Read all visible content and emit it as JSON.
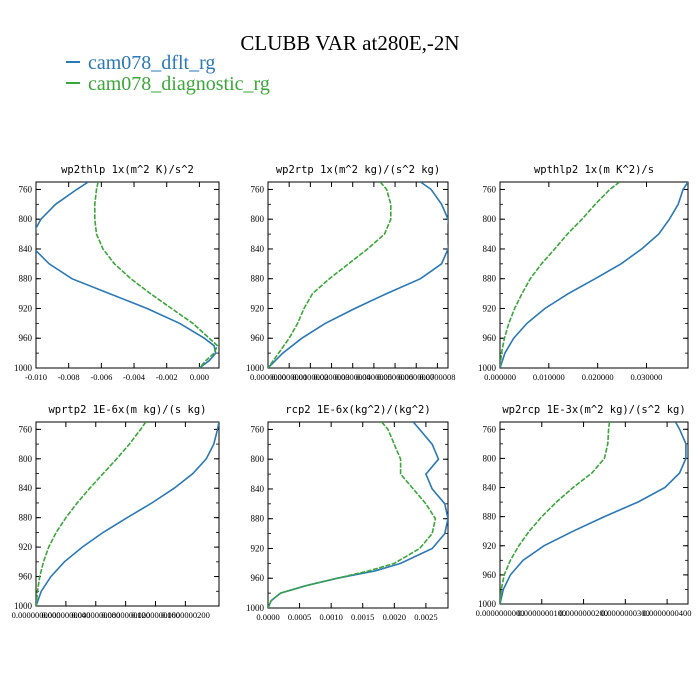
{
  "figure": {
    "title": "CLUBB VAR at280E,-2N",
    "legend": [
      {
        "label": "cam078_dflt_rg",
        "color": "#2a78b5"
      },
      {
        "label": "cam078_diagnostic_rg",
        "color": "#3aa63a"
      }
    ]
  },
  "colors": {
    "dflt": "#2a78b5",
    "diagnostic": "#3aa63a",
    "axis": "#000000"
  },
  "chart_data": [
    {
      "type": "line",
      "title": "wp2thlp  1x(m^2 K)/s^2",
      "xlim": [
        -0.01,
        0.0012
      ],
      "ylim": [
        1000,
        750
      ],
      "xticks": [
        -0.01,
        -0.008,
        -0.006,
        -0.004,
        -0.002,
        0.0
      ],
      "xtick_labels": [
        "-0.010",
        "-0.008",
        "-0.006",
        "-0.004",
        "-0.002",
        "0.000"
      ],
      "yticks": [
        760,
        800,
        840,
        880,
        920,
        960,
        1000
      ],
      "y": [
        750,
        760,
        780,
        800,
        820,
        840,
        860,
        880,
        900,
        920,
        940,
        960,
        970,
        980,
        990,
        1000
      ],
      "series": [
        {
          "name": "cam078_dflt_rg",
          "values": [
            -0.0068,
            -0.0075,
            -0.0088,
            -0.0097,
            -0.0102,
            -0.0101,
            -0.0092,
            -0.0078,
            -0.0055,
            -0.0032,
            -0.0012,
            0.0003,
            0.0009,
            0.001,
            0.0006,
            0.0
          ]
        },
        {
          "name": "cam078_diagnostic_rg",
          "values": [
            -0.0062,
            -0.0063,
            -0.0064,
            -0.0064,
            -0.0063,
            -0.0059,
            -0.0052,
            -0.0042,
            -0.003,
            -0.0017,
            -0.0004,
            0.0006,
            0.0011,
            0.0009,
            0.0004,
            0.0
          ]
        }
      ]
    },
    {
      "type": "line",
      "title": "wp2rtp  1x(m^2 kg)/(s^2 kg)",
      "xlim": [
        0.0,
        8.5e-07
      ],
      "ylim": [
        1000,
        750
      ],
      "xticks": [
        0.0,
        1e-07,
        2e-07,
        3e-07,
        4e-07,
        5e-07,
        6e-07,
        7e-07,
        8e-07
      ],
      "xtick_labels": [
        "0.0000000",
        "0.0000001",
        "0.0000002",
        "0.0000003",
        "0.0000004",
        "0.0000005",
        "0.0000006",
        "0.0000007",
        "0.0000008"
      ],
      "yticks": [
        760,
        800,
        840,
        880,
        920,
        960,
        1000
      ],
      "y": [
        750,
        760,
        780,
        800,
        820,
        840,
        860,
        880,
        900,
        920,
        940,
        960,
        980,
        1000
      ],
      "series": [
        {
          "name": "cam078_dflt_rg",
          "values": [
            7.2e-07,
            7.7e-07,
            8.2e-07,
            8.5e-07,
            8.6e-07,
            8.5e-07,
            8.2e-07,
            7.2e-07,
            5.6e-07,
            4.1e-07,
            2.7e-07,
            1.6e-07,
            7e-08,
            0.0
          ]
        },
        {
          "name": "cam078_diagnostic_rg",
          "values": [
            5.3e-07,
            5.6e-07,
            5.8e-07,
            5.8e-07,
            5.5e-07,
            4.7e-07,
            3.8e-07,
            2.9e-07,
            2.1e-07,
            1.7e-07,
            1.4e-07,
            1e-07,
            5e-08,
            0.0
          ]
        }
      ]
    },
    {
      "type": "line",
      "title": "wpthlp2  1x(m K^2)/s",
      "xlim": [
        0.0,
        0.0385
      ],
      "ylim": [
        1000,
        750
      ],
      "xticks": [
        0.0,
        0.01,
        0.02,
        0.03
      ],
      "xtick_labels": [
        "0.000000",
        "0.010000",
        "0.020000",
        "0.030000"
      ],
      "yticks": [
        760,
        800,
        840,
        880,
        920,
        960,
        1000
      ],
      "y": [
        750,
        760,
        780,
        800,
        820,
        840,
        860,
        880,
        900,
        920,
        940,
        960,
        980,
        1000
      ],
      "series": [
        {
          "name": "cam078_dflt_rg",
          "values": [
            0.0385,
            0.0375,
            0.0365,
            0.0347,
            0.0325,
            0.029,
            0.0248,
            0.0195,
            0.014,
            0.0092,
            0.0055,
            0.0028,
            0.001,
            0.0
          ]
        },
        {
          "name": "cam078_diagnostic_rg",
          "values": [
            0.0245,
            0.0225,
            0.0195,
            0.0168,
            0.0138,
            0.0112,
            0.0085,
            0.0062,
            0.0045,
            0.003,
            0.0018,
            0.0009,
            0.0003,
            0.0
          ]
        }
      ]
    },
    {
      "type": "line",
      "title": "wprtp2  1E-6x(m kg)/(s kg)",
      "xlim": [
        0.0,
        2.45e-08
      ],
      "ylim": [
        1000,
        750
      ],
      "xticks": [
        0.0,
        4e-09,
        8e-09,
        1.2e-08,
        1.6e-08,
        2e-08
      ],
      "xtick_labels": [
        "0.0000000000",
        "0.0000000040",
        "0.0000000080",
        "0.0000000120",
        "0.0000000160",
        "0.0000000200"
      ],
      "yticks": [
        760,
        800,
        840,
        880,
        920,
        960,
        1000
      ],
      "y": [
        750,
        760,
        780,
        800,
        820,
        840,
        860,
        880,
        900,
        920,
        940,
        960,
        980,
        1000
      ],
      "series": [
        {
          "name": "cam078_dflt_rg",
          "values": [
            2.45e-08,
            2.43e-08,
            2.38e-08,
            2.28e-08,
            2.1e-08,
            1.85e-08,
            1.55e-08,
            1.22e-08,
            9e-09,
            6.2e-09,
            3.8e-09,
            2e-09,
            7e-10,
            0.0
          ]
        },
        {
          "name": "cam078_diagnostic_rg",
          "values": [
            1.47e-08,
            1.4e-08,
            1.25e-08,
            1.08e-08,
            9e-09,
            7.2e-09,
            5.5e-09,
            4e-09,
            2.7e-09,
            1.7e-09,
            1e-09,
            5e-10,
            2e-10,
            0.0
          ]
        }
      ]
    },
    {
      "type": "line",
      "title": "rcp2  1E-6x(kg^2)/(kg^2)",
      "xlim": [
        0.0,
        0.00285
      ],
      "ylim": [
        1000,
        750
      ],
      "xticks": [
        0.0,
        0.0005,
        0.001,
        0.0015,
        0.002,
        0.0025
      ],
      "xtick_labels": [
        "0.0000",
        "0.0005",
        "0.0010",
        "0.0015",
        "0.0020",
        "0.0025"
      ],
      "yticks": [
        760,
        800,
        840,
        880,
        920,
        960,
        1000
      ],
      "y": [
        750,
        760,
        780,
        800,
        820,
        840,
        860,
        880,
        900,
        920,
        940,
        950,
        960,
        970,
        980,
        990,
        1000
      ],
      "series": [
        {
          "name": "cam078_dflt_rg",
          "values": [
            0.0023,
            0.0024,
            0.0026,
            0.0027,
            0.0025,
            0.0026,
            0.0028,
            0.00285,
            0.0028,
            0.0026,
            0.0021,
            0.0017,
            0.0011,
            0.0006,
            0.0002,
            5e-05,
            0.0
          ]
        },
        {
          "name": "cam078_diagnostic_rg",
          "values": [
            0.0018,
            0.0019,
            0.002,
            0.0021,
            0.0021,
            0.0023,
            0.0025,
            0.00265,
            0.0026,
            0.0024,
            0.002,
            0.0016,
            0.0011,
            0.0006,
            0.0002,
            5e-05,
            0.0
          ]
        }
      ]
    },
    {
      "type": "line",
      "title": "wp2rcp  1E-3x(m^2 kg)/(s^2 kg)",
      "xlim": [
        0.0,
        4.5e-08
      ],
      "ylim": [
        1000,
        750
      ],
      "xticks": [
        0.0,
        1e-08,
        2e-08,
        3e-08,
        4e-08
      ],
      "xtick_labels": [
        "0.0000000000",
        "0.0000000100",
        "0.0000000200",
        "0.0000000300",
        "0.0000000400"
      ],
      "yticks": [
        760,
        800,
        840,
        880,
        920,
        960,
        1000
      ],
      "y": [
        750,
        760,
        780,
        800,
        820,
        840,
        860,
        880,
        900,
        920,
        940,
        960,
        980,
        1000
      ],
      "series": [
        {
          "name": "cam078_dflt_rg",
          "values": [
            4.2e-08,
            4.3e-08,
            4.45e-08,
            4.45e-08,
            4.3e-08,
            3.95e-08,
            3.3e-08,
            2.5e-08,
            1.75e-08,
            1.05e-08,
            5.5e-09,
            2.5e-09,
            8e-10,
            0.0
          ]
        },
        {
          "name": "cam078_diagnostic_rg",
          "values": [
            2.62e-08,
            2.6e-08,
            2.58e-08,
            2.5e-08,
            2.2e-08,
            1.75e-08,
            1.35e-08,
            1e-08,
            7e-09,
            4.5e-09,
            2.5e-09,
            1e-09,
            3e-10,
            0.0
          ]
        }
      ]
    }
  ]
}
